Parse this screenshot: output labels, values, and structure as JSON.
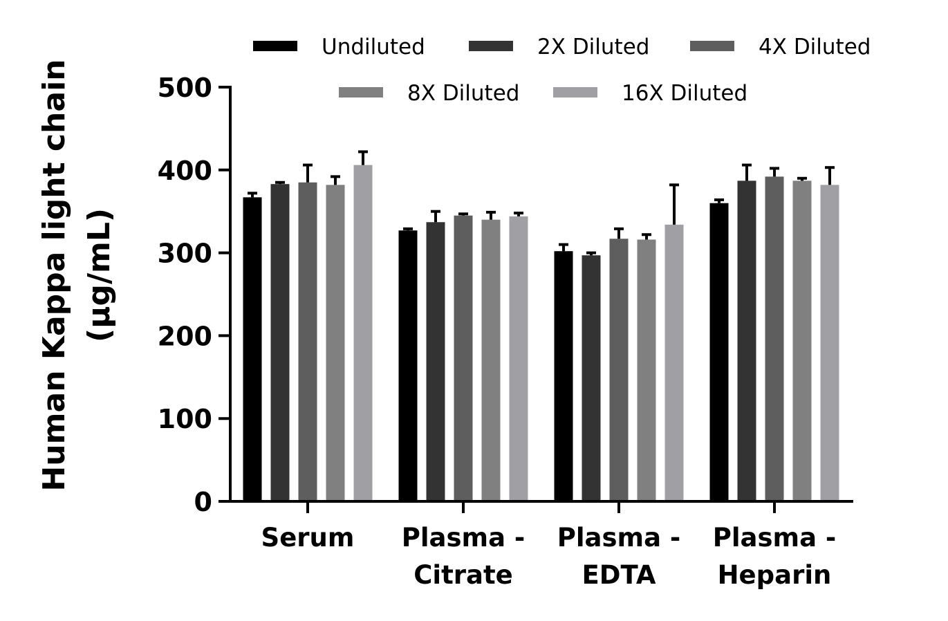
{
  "chart_data": {
    "type": "bar",
    "title": "",
    "xlabel": "",
    "ylabel": [
      "Human Kappa light chain",
      "(µg/mL)"
    ],
    "ylim": [
      0,
      500
    ],
    "yticks": [
      "0",
      "100",
      "200",
      "300",
      "400",
      "500"
    ],
    "grid": false,
    "legend_position": "top",
    "categories": [
      [
        "Serum"
      ],
      [
        "Plasma -",
        "Citrate"
      ],
      [
        "Plasma -",
        "EDTA"
      ],
      [
        "Plasma -",
        "Heparin"
      ]
    ],
    "series": [
      {
        "name": "Undiluted",
        "color": "#000000",
        "values": [
          367,
          327,
          302,
          360
        ],
        "errors": [
          5,
          2,
          8,
          4
        ]
      },
      {
        "name": "2X Diluted",
        "color": "#333333",
        "values": [
          383,
          337,
          297,
          387
        ],
        "errors": [
          2,
          13,
          3,
          19
        ]
      },
      {
        "name": "4X Diluted",
        "color": "#5e5e5e",
        "values": [
          385,
          345,
          317,
          392
        ],
        "errors": [
          21,
          2,
          12,
          10
        ]
      },
      {
        "name": "8X Diluted",
        "color": "#808080",
        "values": [
          382,
          340,
          316,
          387
        ],
        "errors": [
          10,
          9,
          6,
          3
        ]
      },
      {
        "name": "16X Diluted",
        "color": "#a0a0a4",
        "values": [
          406,
          344,
          334,
          382
        ],
        "errors": [
          16,
          4,
          48,
          21
        ]
      }
    ]
  }
}
